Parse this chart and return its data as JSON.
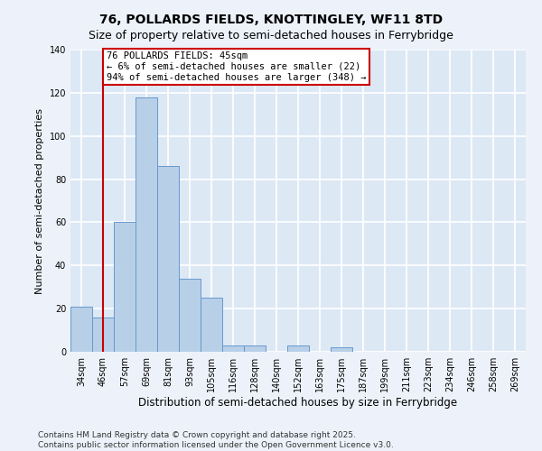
{
  "title": "76, POLLARDS FIELDS, KNOTTINGLEY, WF11 8TD",
  "subtitle": "Size of property relative to semi-detached houses in Ferrybridge",
  "xlabel": "Distribution of semi-detached houses by size in Ferrybridge",
  "ylabel": "Number of semi-detached properties",
  "bar_labels": [
    "34sqm",
    "46sqm",
    "57sqm",
    "69sqm",
    "81sqm",
    "93sqm",
    "105sqm",
    "116sqm",
    "128sqm",
    "140sqm",
    "152sqm",
    "163sqm",
    "175sqm",
    "187sqm",
    "199sqm",
    "211sqm",
    "223sqm",
    "234sqm",
    "246sqm",
    "258sqm",
    "269sqm"
  ],
  "bar_values": [
    21,
    16,
    60,
    118,
    86,
    34,
    25,
    3,
    3,
    0,
    3,
    0,
    2,
    0,
    0,
    0,
    0,
    0,
    0,
    0,
    0
  ],
  "bar_color": "#b8cfe8",
  "bar_edge_color": "#6699cc",
  "ylim": [
    0,
    140
  ],
  "yticks": [
    0,
    20,
    40,
    60,
    80,
    100,
    120,
    140
  ],
  "annotation_title": "76 POLLARDS FIELDS: 45sqm",
  "annotation_line1": "← 6% of semi-detached houses are smaller (22)",
  "annotation_line2": "94% of semi-detached houses are larger (348) →",
  "annotation_box_color": "#ffffff",
  "annotation_border_color": "#cc0000",
  "vline_color": "#cc0000",
  "plot_bg_color": "#dde8f5",
  "fig_bg_color": "#edf2fa",
  "grid_color": "#ffffff",
  "footer_line1": "Contains HM Land Registry data © Crown copyright and database right 2025.",
  "footer_line2": "Contains public sector information licensed under the Open Government Licence v3.0.",
  "title_fontsize": 10,
  "subtitle_fontsize": 9,
  "tick_fontsize": 7,
  "ylabel_fontsize": 8,
  "xlabel_fontsize": 8.5,
  "footer_fontsize": 6.5,
  "annot_fontsize": 7.5
}
